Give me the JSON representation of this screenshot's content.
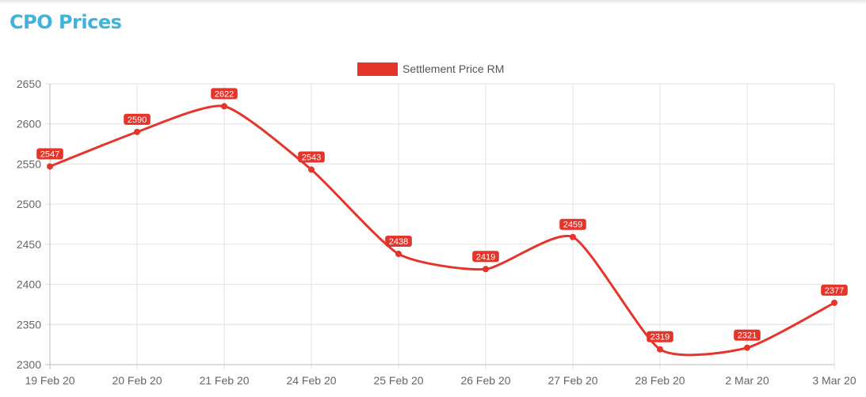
{
  "page": {
    "title": "CPO Prices"
  },
  "colors": {
    "series": "#e5352b",
    "grid": "#e0e0e0",
    "title": "#3db3dd"
  },
  "chart_data": {
    "type": "line",
    "title": "",
    "xlabel": "",
    "ylabel": "",
    "categories": [
      "19 Feb 20",
      "20 Feb 20",
      "21 Feb 20",
      "24 Feb 20",
      "25 Feb 20",
      "26 Feb 20",
      "27 Feb 20",
      "28 Feb 20",
      "2 Mar 20",
      "3 Mar 20"
    ],
    "ylim": [
      2300,
      2650
    ],
    "yticks": [
      2300,
      2350,
      2400,
      2450,
      2500,
      2550,
      2600,
      2650
    ],
    "grid": true,
    "legend_position": "top-center",
    "series": [
      {
        "name": "Settlement Price RM",
        "color": "#e5352b",
        "values": [
          2547,
          2590,
          2622,
          2543,
          2438,
          2419,
          2459,
          2319,
          2321,
          2377
        ]
      }
    ],
    "data_labels": true,
    "curve": "smooth"
  }
}
